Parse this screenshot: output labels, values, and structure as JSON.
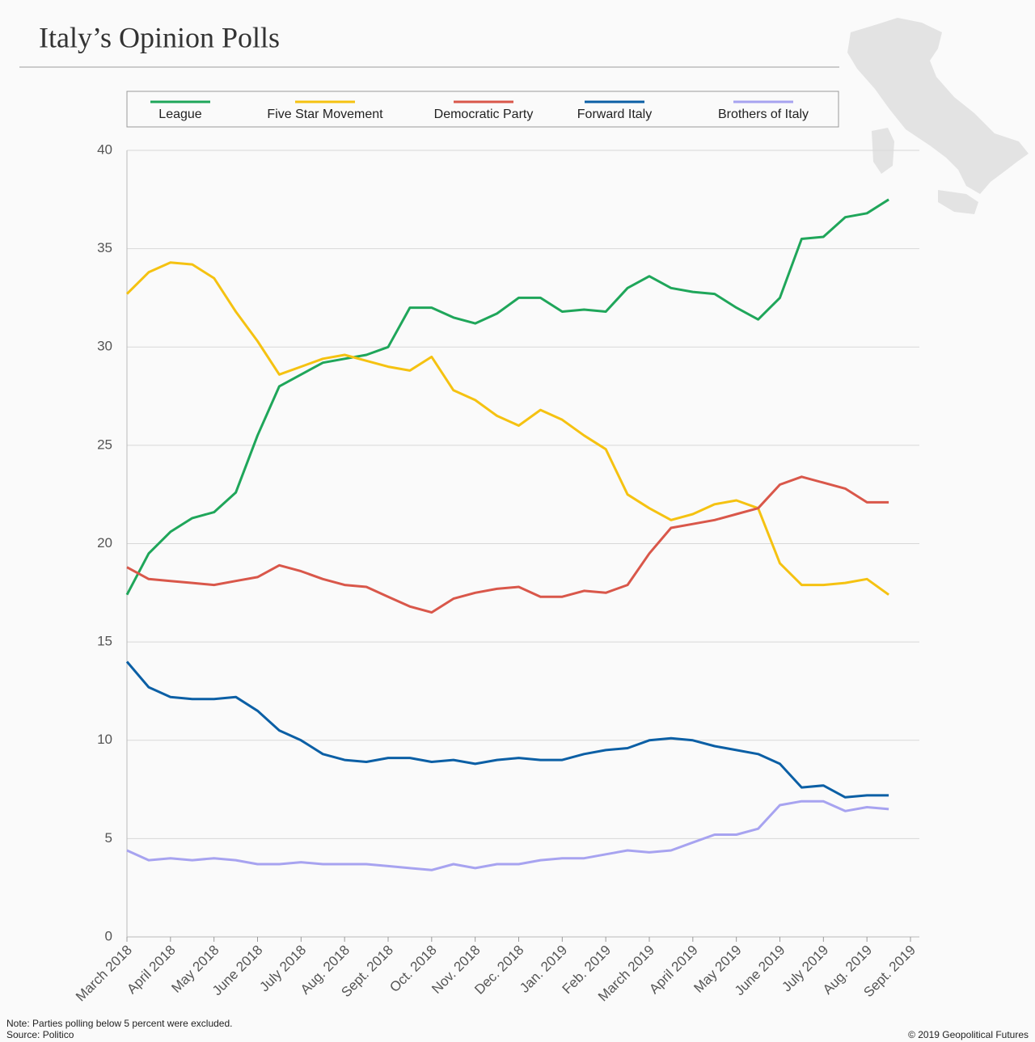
{
  "chart_data": {
    "type": "line",
    "title": "Italy’s Opinion Polls",
    "note": "Note: Parties polling below 5 percent were excluded.",
    "source": "Source: Politico",
    "copyright": "© 2019 Geopolitical Futures",
    "categories": [
      "March 2018",
      null,
      "April 2018",
      null,
      "May 2018",
      null,
      "June 2018",
      null,
      "July 2018",
      null,
      "Aug. 2018",
      null,
      "Sept. 2018",
      null,
      "Oct. 2018",
      null,
      "Nov. 2018",
      null,
      "Dec. 2018",
      null,
      "Jan. 2019",
      null,
      "Feb. 2019",
      null,
      "March 2019",
      null,
      "April 2019",
      null,
      "May 2019",
      null,
      "June 2019",
      null,
      "July 2019",
      null,
      "Aug. 2019",
      null,
      "Sept. 2019"
    ],
    "ylim": [
      0,
      40
    ],
    "yticks": [
      0,
      5,
      10,
      15,
      20,
      25,
      30,
      35,
      40
    ],
    "grid": true,
    "series": [
      {
        "name": "League",
        "color": "#1fa65a",
        "values": [
          17.4,
          19.5,
          20.6,
          21.3,
          21.6,
          22.6,
          25.5,
          28.0,
          28.6,
          29.2,
          29.4,
          29.6,
          30.0,
          32.0,
          32.0,
          31.5,
          31.2,
          31.7,
          32.5,
          32.5,
          31.8,
          31.9,
          31.8,
          33.0,
          33.6,
          33.0,
          32.8,
          32.7,
          32.0,
          31.4,
          32.5,
          35.5,
          35.6,
          36.6,
          36.8,
          37.5,
          null
        ]
      },
      {
        "name": "Five Star Movement",
        "color": "#f5c211",
        "values": [
          32.7,
          33.8,
          34.3,
          34.2,
          33.5,
          31.8,
          30.3,
          28.6,
          29.0,
          29.4,
          29.6,
          29.3,
          29.0,
          28.8,
          29.5,
          27.8,
          27.3,
          26.5,
          26.0,
          26.8,
          26.3,
          25.5,
          24.8,
          22.5,
          21.8,
          21.2,
          21.5,
          22.0,
          22.2,
          21.8,
          19.0,
          17.9,
          17.9,
          18.0,
          18.2,
          17.4,
          null
        ]
      },
      {
        "name": "Democratic Party",
        "color": "#d9574a",
        "values": [
          18.8,
          18.2,
          18.1,
          18.0,
          17.9,
          18.1,
          18.3,
          18.9,
          18.6,
          18.2,
          17.9,
          17.8,
          17.3,
          16.8,
          16.5,
          17.2,
          17.5,
          17.7,
          17.8,
          17.3,
          17.3,
          17.6,
          17.5,
          17.9,
          19.5,
          20.8,
          21.0,
          21.2,
          21.5,
          21.8,
          23.0,
          23.4,
          23.1,
          22.8,
          22.1,
          22.1,
          null
        ]
      },
      {
        "name": "Forward Italy",
        "color": "#0b5fa5",
        "values": [
          14.0,
          12.7,
          12.2,
          12.1,
          12.1,
          12.2,
          11.5,
          10.5,
          10.0,
          9.3,
          9.0,
          8.9,
          9.1,
          9.1,
          8.9,
          9.0,
          8.8,
          9.0,
          9.1,
          9.0,
          9.0,
          9.3,
          9.5,
          9.6,
          10.0,
          10.1,
          10.0,
          9.7,
          9.5,
          9.3,
          8.8,
          7.6,
          7.7,
          7.1,
          7.2,
          7.2,
          null
        ]
      },
      {
        "name": "Brothers of Italy",
        "color": "#a7a3f0",
        "values": [
          4.4,
          3.9,
          4.0,
          3.9,
          4.0,
          3.9,
          3.7,
          3.7,
          3.8,
          3.7,
          3.7,
          3.7,
          3.6,
          3.5,
          3.4,
          3.7,
          3.5,
          3.7,
          3.7,
          3.9,
          4.0,
          4.0,
          4.2,
          4.4,
          4.3,
          4.4,
          4.8,
          5.2,
          5.2,
          5.5,
          6.7,
          6.9,
          6.9,
          6.4,
          6.6,
          6.5,
          null
        ]
      }
    ]
  }
}
